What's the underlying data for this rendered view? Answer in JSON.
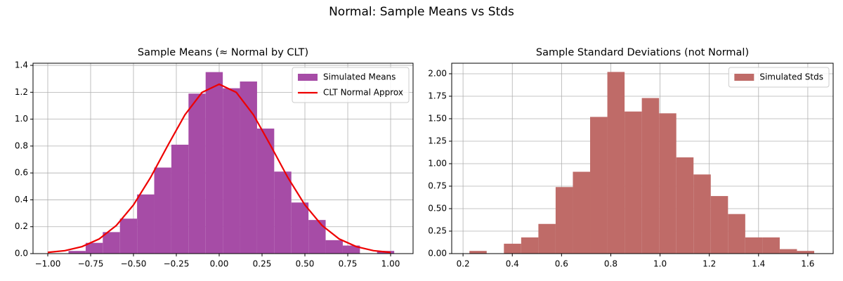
{
  "title": "Normal: Sample Means vs Stds",
  "chart_data": [
    {
      "type": "histogram",
      "title": "Sample Means (≈ Normal by CLT)",
      "name": "Simulated Means",
      "color": "#a64ca6",
      "bins": [
        -0.879,
        -0.779,
        -0.679,
        -0.579,
        -0.479,
        -0.379,
        -0.279,
        -0.179,
        -0.079,
        0.021,
        0.121,
        0.221,
        0.321,
        0.421,
        0.521,
        0.621,
        0.721,
        0.821,
        0.921,
        1.021
      ],
      "values": [
        0.02,
        0.08,
        0.16,
        0.26,
        0.44,
        0.64,
        0.81,
        1.19,
        1.35,
        1.23,
        1.28,
        0.93,
        0.61,
        0.38,
        0.25,
        0.1,
        0.06,
        0,
        0.02
      ],
      "line": {
        "name": "CLT Normal Approx",
        "color": "#ee0000",
        "x": [
          -1.0,
          -0.9,
          -0.8,
          -0.7,
          -0.6,
          -0.5,
          -0.4,
          -0.3,
          -0.2,
          -0.1,
          0,
          0.1,
          0.2,
          0.3,
          0.4,
          0.5,
          0.6,
          0.7,
          0.8,
          0.9,
          1.0
        ],
        "values": [
          0.009,
          0.022,
          0.052,
          0.109,
          0.209,
          0.362,
          0.567,
          0.804,
          1.032,
          1.199,
          1.26,
          1.199,
          1.032,
          0.804,
          0.567,
          0.362,
          0.209,
          0.109,
          0.052,
          0.022,
          0.009
        ]
      },
      "xlim": [
        -1.086,
        1.131
      ],
      "ylim": [
        0,
        1.416
      ],
      "xticks": [
        {
          "value": -1,
          "label": "−1.00"
        },
        {
          "value": -0.75,
          "label": "−0.75"
        },
        {
          "value": -0.5,
          "label": "−0.50"
        },
        {
          "value": -0.25,
          "label": "−0.25"
        },
        {
          "value": 0,
          "label": "0.00"
        },
        {
          "value": 0.25,
          "label": "0.25"
        },
        {
          "value": 0.5,
          "label": "0.50"
        },
        {
          "value": 0.75,
          "label": "0.75"
        },
        {
          "value": 1,
          "label": "1.00"
        }
      ],
      "yticks": [
        {
          "value": 0,
          "label": "0.0"
        },
        0.2,
        0.4,
        0.6,
        0.8,
        {
          "value": 1,
          "label": "1.0"
        },
        1.2,
        1.4
      ],
      "grid": true,
      "legend": "upper right"
    },
    {
      "type": "histogram",
      "title": "Sample Standard Deviations (not Normal)",
      "name": "Simulated Stds",
      "color": "#bf6b68",
      "bins": [
        0.226,
        0.296,
        0.366,
        0.436,
        0.506,
        0.576,
        0.646,
        0.716,
        0.786,
        0.856,
        0.926,
        0.996,
        1.066,
        1.136,
        1.206,
        1.276,
        1.346,
        1.416,
        1.486,
        1.556,
        1.626
      ],
      "values": [
        0.03,
        0,
        0.11,
        0.18,
        0.33,
        0.74,
        0.91,
        1.52,
        2.02,
        1.58,
        1.73,
        1.56,
        1.07,
        0.88,
        0.64,
        0.44,
        0.18,
        0.18,
        0.05,
        0.03
      ],
      "xlim": [
        0.154,
        1.703
      ],
      "ylim": [
        0,
        2.117
      ],
      "xticks": [
        0.2,
        0.4,
        0.6,
        0.8,
        {
          "value": 1,
          "label": "1.0"
        },
        1.2,
        1.4,
        1.6
      ],
      "yticks": [
        {
          "value": 0,
          "label": "0.00"
        },
        0.25,
        {
          "value": 0.5,
          "label": "0.50"
        },
        0.75,
        {
          "value": 1,
          "label": "1.00"
        },
        1.25,
        {
          "value": 1.5,
          "label": "1.50"
        },
        1.75,
        {
          "value": 2,
          "label": "2.00"
        }
      ],
      "grid": true,
      "legend": "upper right"
    }
  ]
}
